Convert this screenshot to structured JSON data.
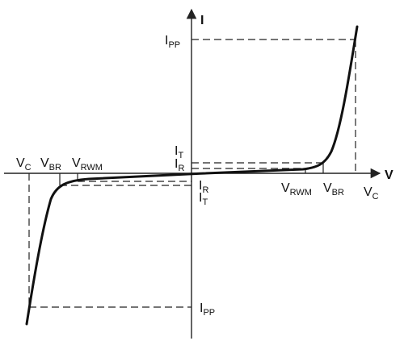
{
  "diagram": {
    "axes": {
      "x_label": "V",
      "y_label": "I"
    },
    "labels": {
      "ipp_top": {
        "main": "I",
        "sub": "PP"
      },
      "ipp_bottom": {
        "main": "I",
        "sub": "PP"
      },
      "it_top": {
        "main": "I",
        "sub": "T"
      },
      "ir_top": {
        "main": "I",
        "sub": "R"
      },
      "ir_bottom": {
        "main": "I",
        "sub": "R"
      },
      "it_bottom": {
        "main": "I",
        "sub": "T"
      },
      "vc_left": {
        "main": "V",
        "sub": "C"
      },
      "vbr_left": {
        "main": "V",
        "sub": "BR"
      },
      "vrwm_left": {
        "main": "V",
        "sub": "RWM"
      },
      "vrwm_right": {
        "main": "V",
        "sub": "RWM"
      },
      "vbr_right": {
        "main": "V",
        "sub": "BR"
      },
      "vc_right": {
        "main": "V",
        "sub": "C"
      }
    }
  }
}
